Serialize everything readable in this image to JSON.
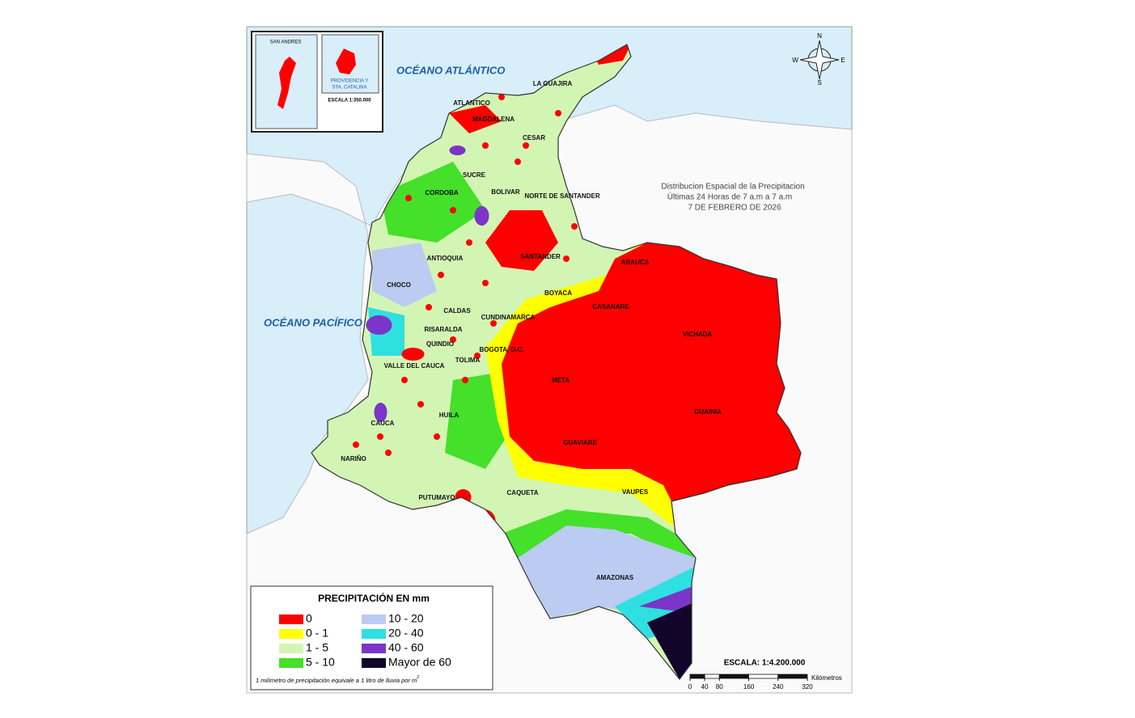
{
  "title": {
    "line1": "Distribucion Espacial de la Precipitacion",
    "line2": "Últimas 24 Horas de 7 a.m  a  7 a.m",
    "line3": "7 DE FEBRERO DE 2026"
  },
  "oceans": {
    "atlantic": "OCÉANO ATLÁNTICO",
    "pacific": "OCÉANO PACÍFICO"
  },
  "departments": [
    "LA GUAJIRA",
    "ATLANTICO",
    "MAGDALENA",
    "CESAR",
    "SUCRE",
    "BOLIVAR",
    "CORDOBA",
    "NORTE DE SANTANDER",
    "ANTIOQUIA",
    "SANTANDER",
    "ARAUCA",
    "CHOCO",
    "BOYACA",
    "CASANARE",
    "CALDAS",
    "CUNDINAMARCA",
    "RISARALDA",
    "VICHADA",
    "QUINDIO",
    "BOGOTA, D.C.",
    "TOLIMA",
    "VALLE DEL CAUCA",
    "META",
    "GUAINIA",
    "HUILA",
    "CAUCA",
    "GUAVIARE",
    "NARIÑO",
    "PUTUMAYO",
    "CAQUETA",
    "VAUPES",
    "AMAZONAS"
  ],
  "inset": {
    "san_andres": "SAN ANDRES",
    "providencia_1": "PROVIDENCIA Y",
    "providencia_2": "STA. CATALINA",
    "scale": "ESCALA 1:350.000"
  },
  "compass": {
    "n": "N",
    "s": "S",
    "e": "E",
    "w": "W"
  },
  "legend": {
    "title": "PRECIPITACIÓN EN mm",
    "items": [
      {
        "label": "0",
        "color": "#ff0000"
      },
      {
        "label": "0 - 1",
        "color": "#ffff00"
      },
      {
        "label": "1 - 5",
        "color": "#d3f5b4"
      },
      {
        "label": "5 - 10",
        "color": "#44e02a"
      },
      {
        "label": "10 - 20",
        "color": "#bccbf2"
      },
      {
        "label": "20 - 40",
        "color": "#2ee0e0"
      },
      {
        "label": "40 - 60",
        "color": "#7b35c8"
      },
      {
        "label": "Mayor de 60",
        "color": "#12042a"
      }
    ],
    "note": "1 milímetro de precipitación equivale a 1 litro de lluvia por m",
    "note_sup": "2"
  },
  "scale": {
    "label": "ESCALA: 1:4.200.000",
    "unit": "Kilómetros",
    "ticks": [
      0,
      40,
      80,
      160,
      240,
      320
    ]
  }
}
